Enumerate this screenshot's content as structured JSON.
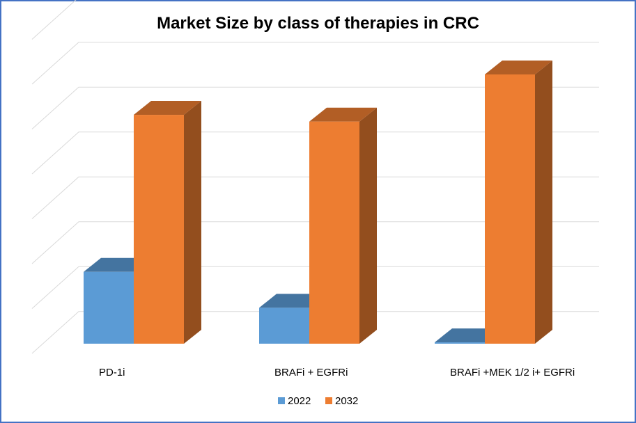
{
  "chart_data": {
    "type": "bar",
    "title": "Market Size by class of therapies in CRC",
    "categories": [
      "PD-1i",
      "BRAFi + EGFRi",
      "BRAFi +MEK 1/2 i+ EGFRi"
    ],
    "series": [
      {
        "name": "2022",
        "values": [
          1.6,
          0.8,
          0.03
        ],
        "color": "#5b9bd5"
      },
      {
        "name": "2032",
        "values": [
          5.1,
          4.95,
          6.0
        ],
        "color": "#ed7d31"
      }
    ],
    "ylim": [
      0,
      7
    ],
    "grid": true,
    "legend": "bottom",
    "projection": "3d"
  }
}
